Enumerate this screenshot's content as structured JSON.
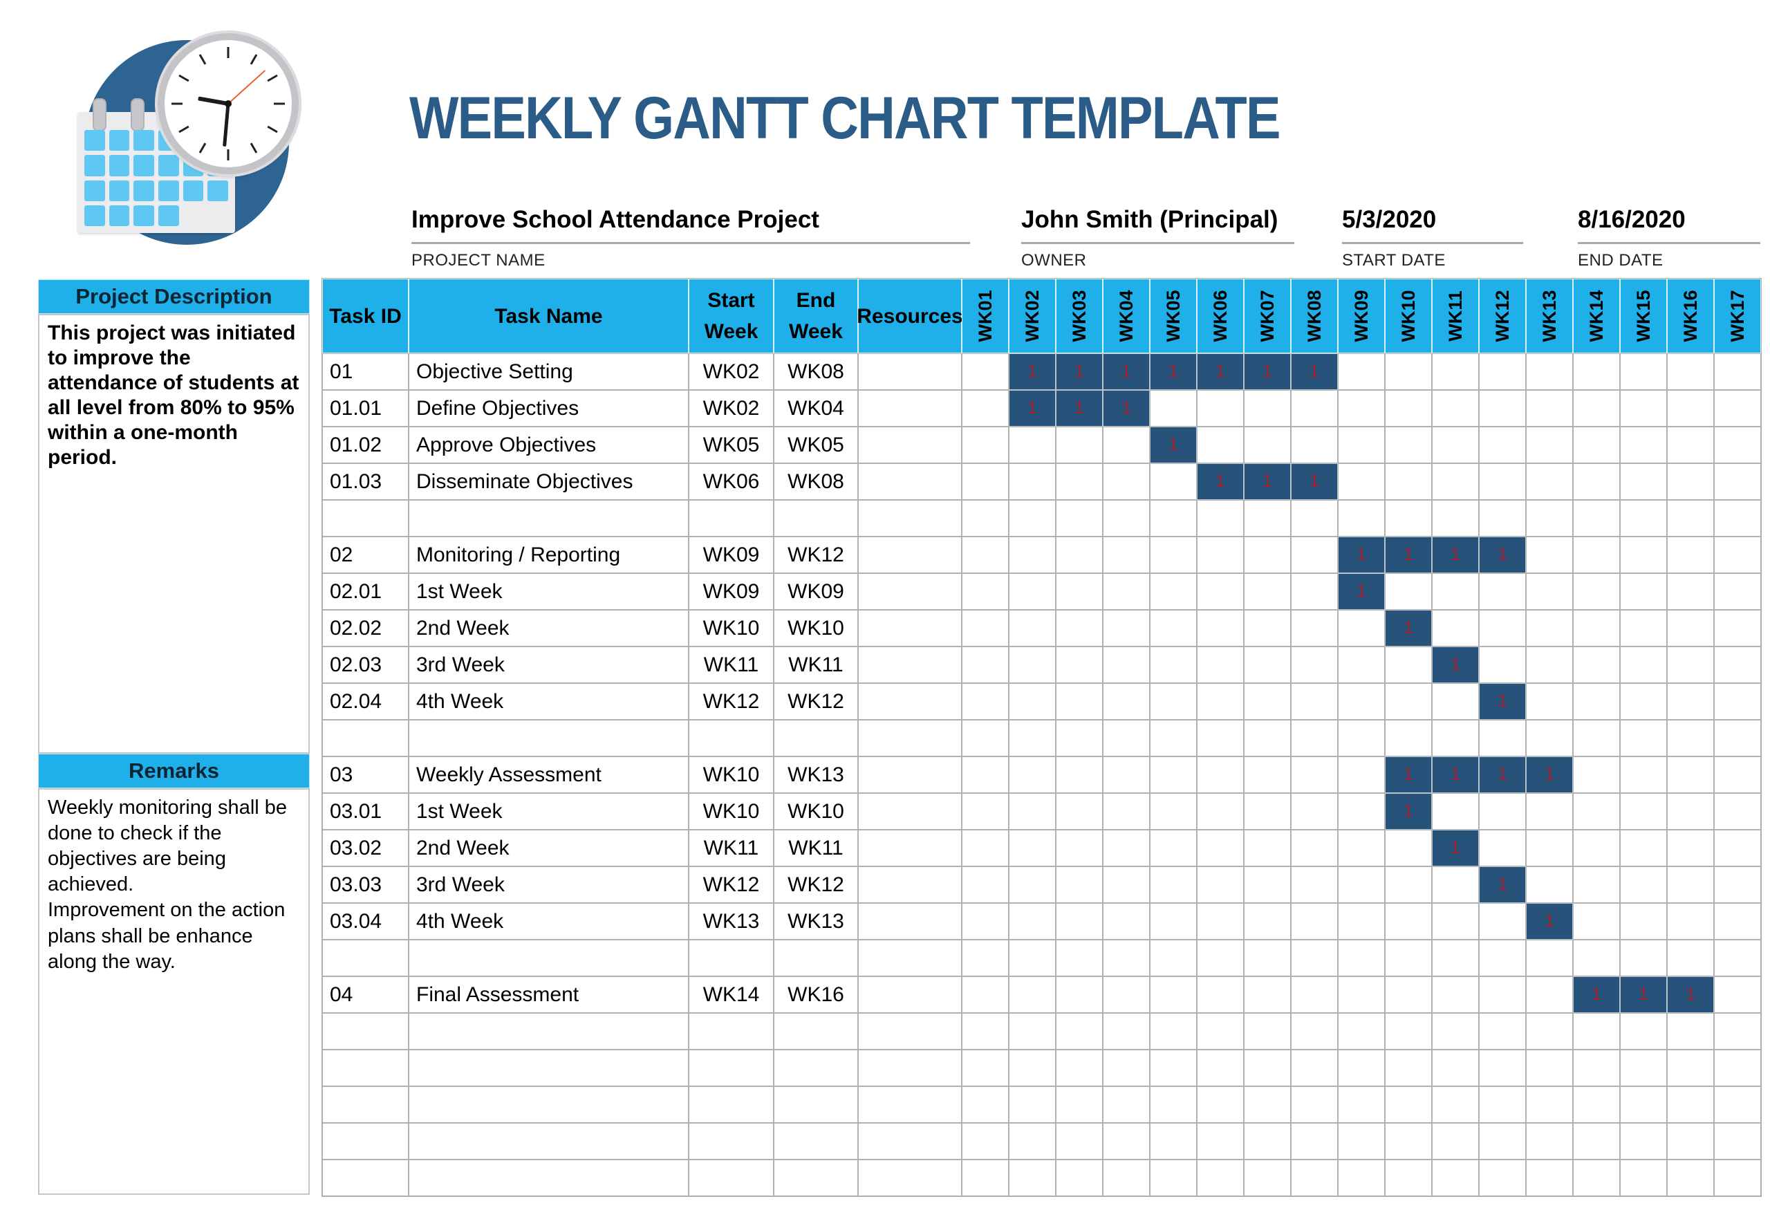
{
  "header": {
    "title": "WEEKLY GANTT CHART TEMPLATE",
    "fields": [
      {
        "value": "Improve School Attendance Project",
        "label": "PROJECT NAME"
      },
      {
        "value": "John Smith (Principal)",
        "label": "OWNER"
      },
      {
        "value": "5/3/2020",
        "label": "START DATE"
      },
      {
        "value": "8/16/2020",
        "label": "END DATE"
      }
    ]
  },
  "sidebar": {
    "description_title": "Project Description",
    "description_text": "This project was initiated to improve the attendance of students at all level from 80% to 95% within a one-month period.",
    "remarks_title": "Remarks",
    "remarks_lines": [
      "Weekly monitoring shall be done to check if the objectives are being achieved.",
      "Improvement on the action plans shall be enhance along the way."
    ]
  },
  "colors": {
    "accent_cyan": "#1fb0ea",
    "bar_fill": "#27537a",
    "bar_text_red": "#a8202d",
    "title_navy": "#2b5c88",
    "logo_circle_blue": "#2e6491",
    "calendar_day_cyan": "#5fc8f2",
    "grid_line_gray": "#b2b2b2"
  },
  "chart_data": {
    "type": "table",
    "subtype": "gantt",
    "title": "WEEKLY GANTT CHART TEMPLATE",
    "project_name": "Improve School Attendance Project",
    "owner": "John Smith (Principal)",
    "start_date": "5/3/2020",
    "end_date": "8/16/2020",
    "col_headers": [
      [
        "Task ID"
      ],
      [
        "Task Name"
      ],
      [
        "Start",
        "Week"
      ],
      [
        "End",
        "Week"
      ],
      [
        "Resources"
      ]
    ],
    "weeks": [
      "WK01",
      "WK02",
      "WK03",
      "WK04",
      "WK05",
      "WK06",
      "WK07",
      "WK08",
      "WK09",
      "WK10",
      "WK11",
      "WK12",
      "WK13",
      "WK14",
      "WK15",
      "WK16",
      "WK17"
    ],
    "bar_label": "1",
    "tasks": [
      {
        "id": "01",
        "name": "Objective Setting",
        "start": "WK02",
        "end": "WK08",
        "resources": "",
        "bars": [
          2,
          3,
          4,
          5,
          6,
          7,
          8
        ]
      },
      {
        "id": "01.01",
        "name": "Define Objectives",
        "start": "WK02",
        "end": "WK04",
        "resources": "",
        "bars": [
          2,
          3,
          4
        ]
      },
      {
        "id": "01.02",
        "name": "Approve Objectives",
        "start": "WK05",
        "end": "WK05",
        "resources": "",
        "bars": [
          5
        ]
      },
      {
        "id": "01.03",
        "name": "Disseminate Objectives",
        "start": "WK06",
        "end": "WK08",
        "resources": "",
        "bars": [
          6,
          7,
          8
        ]
      },
      {
        "id": "",
        "name": "",
        "start": "",
        "end": "",
        "resources": "",
        "bars": []
      },
      {
        "id": "02",
        "name": "Monitoring / Reporting",
        "start": "WK09",
        "end": "WK12",
        "resources": "",
        "bars": [
          9,
          10,
          11,
          12
        ]
      },
      {
        "id": "02.01",
        "name": "1st Week",
        "start": "WK09",
        "end": "WK09",
        "resources": "",
        "bars": [
          9
        ]
      },
      {
        "id": "02.02",
        "name": "2nd Week",
        "start": "WK10",
        "end": "WK10",
        "resources": "",
        "bars": [
          10
        ]
      },
      {
        "id": "02.03",
        "name": "3rd Week",
        "start": "WK11",
        "end": "WK11",
        "resources": "",
        "bars": [
          11
        ]
      },
      {
        "id": "02.04",
        "name": "4th Week",
        "start": "WK12",
        "end": "WK12",
        "resources": "",
        "bars": [
          12
        ]
      },
      {
        "id": "",
        "name": "",
        "start": "",
        "end": "",
        "resources": "",
        "bars": []
      },
      {
        "id": "03",
        "name": "Weekly Assessment",
        "start": "WK10",
        "end": "WK13",
        "resources": "",
        "bars": [
          10,
          11,
          12,
          13
        ]
      },
      {
        "id": "03.01",
        "name": "1st Week",
        "start": "WK10",
        "end": "WK10",
        "resources": "",
        "bars": [
          10
        ]
      },
      {
        "id": "03.02",
        "name": "2nd Week",
        "start": "WK11",
        "end": "WK11",
        "resources": "",
        "bars": [
          11
        ]
      },
      {
        "id": "03.03",
        "name": "3rd Week",
        "start": "WK12",
        "end": "WK12",
        "resources": "",
        "bars": [
          12
        ]
      },
      {
        "id": "03.04",
        "name": "4th Week",
        "start": "WK13",
        "end": "WK13",
        "resources": "",
        "bars": [
          13
        ]
      },
      {
        "id": "",
        "name": "",
        "start": "",
        "end": "",
        "resources": "",
        "bars": []
      },
      {
        "id": "04",
        "name": "Final Assessment",
        "start": "WK14",
        "end": "WK16",
        "resources": "",
        "bars": [
          14,
          15,
          16
        ]
      },
      {
        "id": "",
        "name": "",
        "start": "",
        "end": "",
        "resources": "",
        "bars": []
      },
      {
        "id": "",
        "name": "",
        "start": "",
        "end": "",
        "resources": "",
        "bars": []
      },
      {
        "id": "",
        "name": "",
        "start": "",
        "end": "",
        "resources": "",
        "bars": []
      },
      {
        "id": "",
        "name": "",
        "start": "",
        "end": "",
        "resources": "",
        "bars": []
      },
      {
        "id": "",
        "name": "",
        "start": "",
        "end": "",
        "resources": "",
        "bars": []
      }
    ]
  }
}
